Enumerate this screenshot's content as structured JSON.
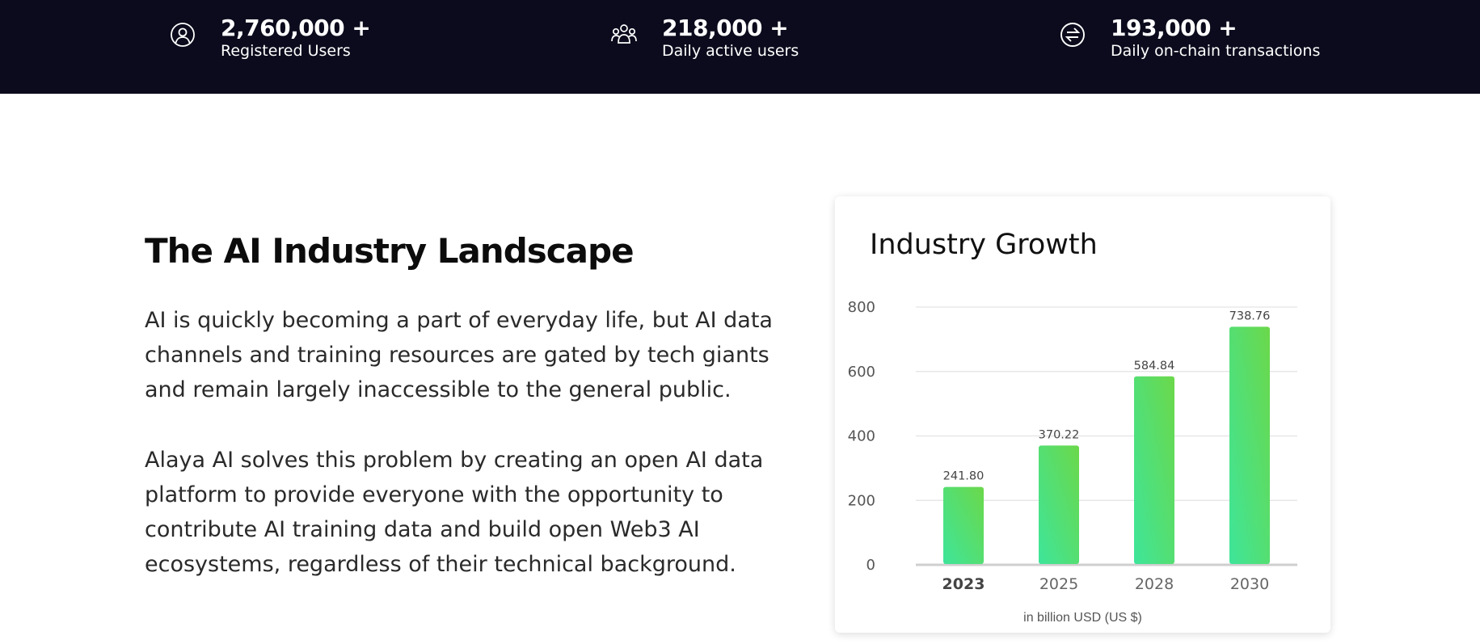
{
  "stats": [
    {
      "icon": "user-circle-icon",
      "value": "2,760,000 +",
      "label": "Registered Users"
    },
    {
      "icon": "users-group-icon",
      "value": "218,000 +",
      "label": "Daily active users"
    },
    {
      "icon": "exchange-icon",
      "value": "193,000 +",
      "label": "Daily on-chain transactions"
    }
  ],
  "main": {
    "title": "The AI Industry Landscape",
    "paragraphs": [
      "AI is quickly becoming a part of everyday life, but AI data channels and training resources are gated by tech giants and remain largely inaccessible to the general public.",
      "Alaya AI solves this problem by creating an open AI data platform to provide everyone with the opportunity to contribute AI training data and build open Web3 AI ecosystems, regardless of their technical background."
    ]
  },
  "chart_card": {
    "title": "Industry Growth",
    "caption": "in billion USD (US $)"
  },
  "chart_data": {
    "type": "bar",
    "title": "Industry Growth",
    "xlabel": "in billion USD (US $)",
    "ylabel": "",
    "categories": [
      "2023",
      "2025",
      "2028",
      "2030"
    ],
    "values": [
      241.8,
      370.22,
      584.84,
      738.76
    ],
    "value_labels": [
      "241.80",
      "370.22",
      "584.84",
      "738.76"
    ],
    "ylim": [
      0,
      800
    ],
    "yticks": [
      "0",
      "200",
      "400",
      "600",
      "800"
    ],
    "grid": true,
    "bar_gradient": [
      "#3ee59a",
      "#6bd84a"
    ]
  },
  "colors": {
    "header_bg": "#0b0b1d",
    "text_dark": "#0c0c0c"
  }
}
